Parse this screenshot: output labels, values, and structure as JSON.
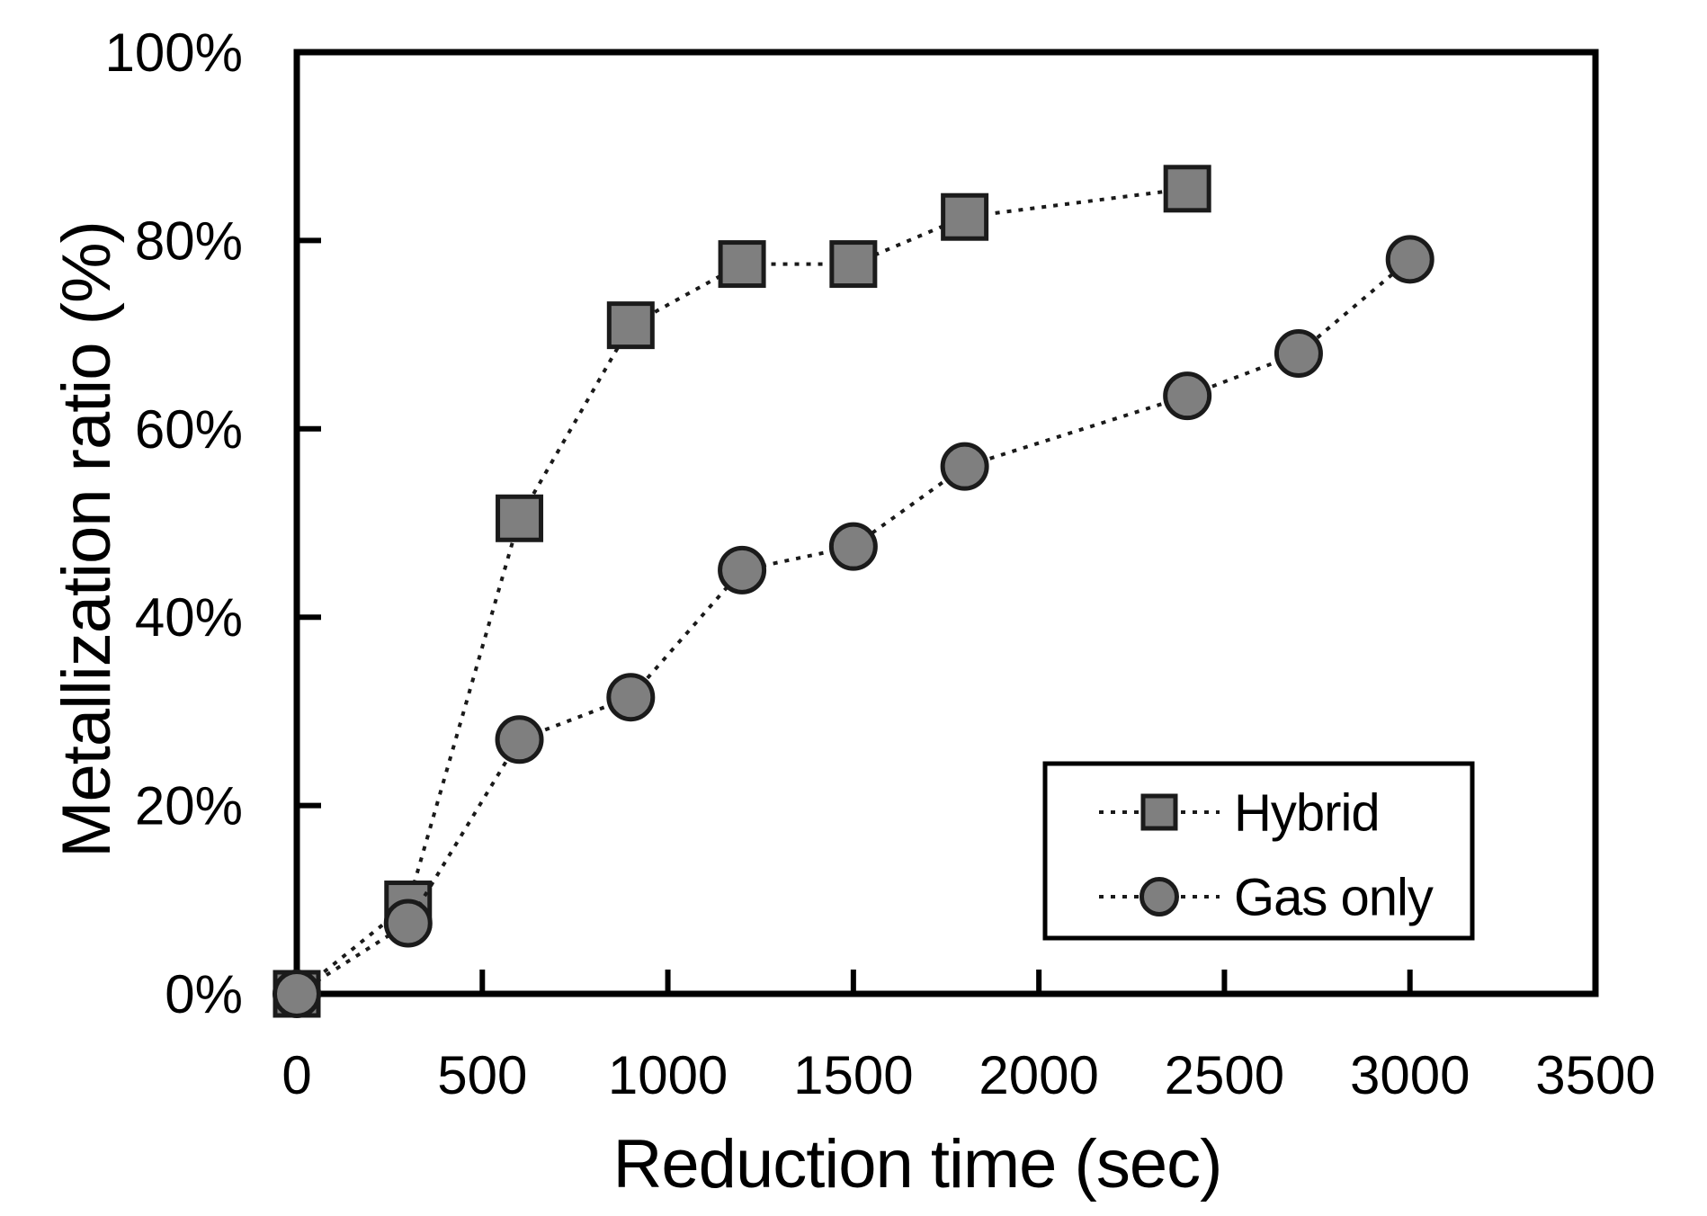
{
  "figure": {
    "background": "#ffffff",
    "axis_color": "#000000",
    "text_color": "#000000"
  },
  "chart_data": {
    "type": "line",
    "title": "",
    "xlabel": "Reduction time (sec)",
    "ylabel": "Metallization ratio (%)",
    "xlim": [
      0,
      3500
    ],
    "ylim": [
      0,
      100
    ],
    "grid": false,
    "xticks": {
      "values": [
        0,
        500,
        1000,
        1500,
        2000,
        2500,
        3000,
        3500
      ],
      "labels": [
        "0",
        "500",
        "1000",
        "1500",
        "2000",
        "2500",
        "3000",
        "3500"
      ]
    },
    "yticks": {
      "values": [
        0,
        20,
        40,
        60,
        80,
        100
      ],
      "labels": [
        "0%",
        "20%",
        "40%",
        "60%",
        "80%",
        "100%"
      ]
    },
    "legend": {
      "position": "lower-right",
      "border": true
    },
    "style": {
      "marker_fill": "#7f7f7f",
      "marker_edge": "#1b1b1b",
      "line_color": "#1a1a1a",
      "line_style": "dotted"
    },
    "series": [
      {
        "name": "Hybrid",
        "marker": "square",
        "x": [
          0,
          300,
          600,
          900,
          1200,
          1500,
          1800,
          2400
        ],
        "y": [
          0,
          9.5,
          50.5,
          71,
          77.5,
          77.5,
          82.5,
          85.5
        ]
      },
      {
        "name": "Gas only",
        "marker": "circle",
        "x": [
          0,
          300,
          600,
          900,
          1200,
          1500,
          1800,
          2400,
          2700,
          3000
        ],
        "y": [
          0,
          7.5,
          27,
          31.5,
          45,
          47.5,
          56,
          63.5,
          68,
          78
        ]
      }
    ]
  }
}
